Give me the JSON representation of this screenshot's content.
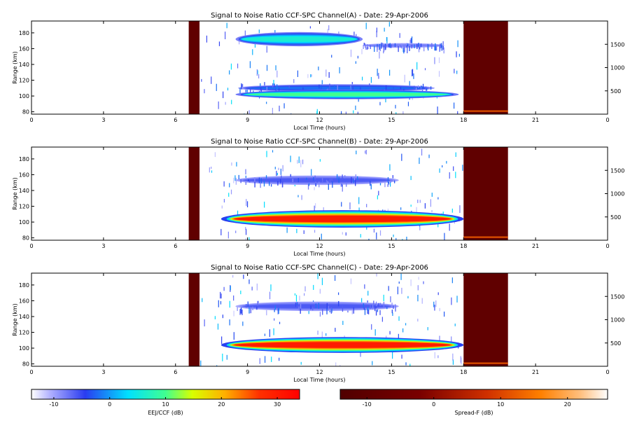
{
  "chart_data": [
    {
      "type": "heatmap",
      "title": "Signal to Noise Ratio CCF-SPC Channel(A) - Date: 29-Apr-2006",
      "xlabel": "Local Time (hours)",
      "ylabel": "Range (km)",
      "xlim": [
        0,
        24
      ],
      "ylim": [
        77,
        195
      ],
      "y2lim": [
        0,
        2000
      ],
      "xticks": [
        "0",
        "3",
        "6",
        "9",
        "12",
        "15",
        "18",
        "21",
        "0"
      ],
      "yticks": [
        80,
        100,
        120,
        140,
        160,
        180
      ],
      "y2ticks": [
        500,
        1000,
        1500
      ],
      "gaps": [
        [
          6.55,
          7.0
        ],
        [
          18.0,
          19.85
        ]
      ],
      "echoes": [
        {
          "t0": 8.5,
          "t1": 13.8,
          "h": 172,
          "hw": 9,
          "snr": 6
        },
        {
          "t0": 13.8,
          "t1": 17.2,
          "h": 164,
          "hw": 3,
          "snr": -8
        },
        {
          "t0": 8.6,
          "t1": 16.8,
          "h": 110,
          "hw": 5,
          "snr": -2
        },
        {
          "t0": 8.5,
          "t1": 17.8,
          "h": 102,
          "hw": 6,
          "snr": 10
        }
      ],
      "spread_f": [
        {
          "t0": 18.0,
          "t1": 19.85,
          "h": 80,
          "snr": 12
        }
      ]
    },
    {
      "type": "heatmap",
      "title": "Signal to Noise Ratio CCF-SPC Channel(B) - Date: 29-Apr-2006",
      "xlabel": "Local Time (hours)",
      "ylabel": "Range (km)",
      "xlim": [
        0,
        24
      ],
      "ylim": [
        77,
        195
      ],
      "y2lim": [
        0,
        2000
      ],
      "xticks": [
        "0",
        "3",
        "6",
        "9",
        "12",
        "15",
        "18",
        "21",
        "0"
      ],
      "yticks": [
        80,
        100,
        120,
        140,
        160,
        180
      ],
      "y2ticks": [
        500,
        1000,
        1500
      ],
      "gaps": [
        [
          6.55,
          7.0
        ],
        [
          18.0,
          19.85
        ]
      ],
      "echoes": [
        {
          "t0": 8.5,
          "t1": 15.3,
          "h": 153,
          "hw": 6,
          "snr": -6
        },
        {
          "t0": 7.9,
          "t1": 18.0,
          "h": 104,
          "hw": 11,
          "snr": 30
        }
      ],
      "spread_f": [
        {
          "t0": 18.0,
          "t1": 19.85,
          "h": 80,
          "snr": 12
        }
      ]
    },
    {
      "type": "heatmap",
      "title": "Signal to Noise Ratio CCF-SPC Channel(C) - Date: 29-Apr-2006",
      "xlabel": "Local Time (hours)",
      "ylabel": "Range (km)",
      "xlim": [
        0,
        24
      ],
      "ylim": [
        77,
        195
      ],
      "y2lim": [
        0,
        2000
      ],
      "xticks": [
        "0",
        "3",
        "6",
        "9",
        "12",
        "15",
        "18",
        "21",
        "0"
      ],
      "yticks": [
        80,
        100,
        120,
        140,
        160,
        180
      ],
      "y2ticks": [
        500,
        1000,
        1500
      ],
      "gaps": [
        [
          6.55,
          7.0
        ],
        [
          18.0,
          19.85
        ]
      ],
      "echoes": [
        {
          "t0": 8.5,
          "t1": 15.3,
          "h": 153,
          "hw": 6,
          "snr": -6
        },
        {
          "t0": 7.9,
          "t1": 18.0,
          "h": 104,
          "hw": 10,
          "snr": 30
        }
      ],
      "spread_f": [
        {
          "t0": 18.0,
          "t1": 19.85,
          "h": 80,
          "snr": 12
        }
      ]
    }
  ],
  "colorbars": [
    {
      "label": "EEJ/CCF (dB)",
      "range": [
        -14,
        34
      ],
      "ticks": [
        -10,
        0,
        10,
        20,
        30
      ],
      "palette": "rainbow"
    },
    {
      "label": "Spread-F (dB)",
      "range": [
        -14,
        26
      ],
      "ticks": [
        -10,
        0,
        10,
        20
      ],
      "palette": "hot"
    }
  ]
}
